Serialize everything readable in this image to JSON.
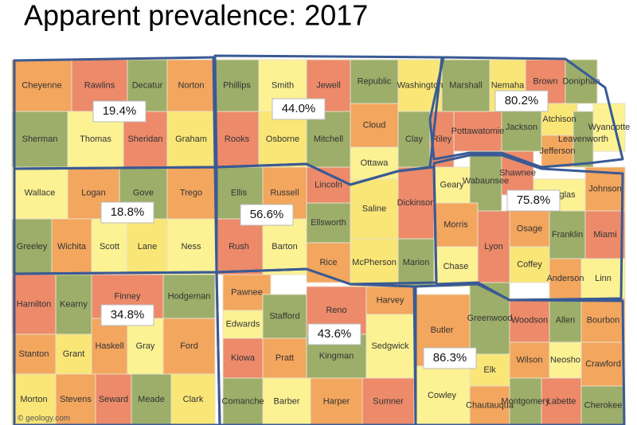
{
  "title": "Apparent prevalence:  2017",
  "counties": [
    "Cheyenne",
    "Rawlins",
    "Decatur",
    "Norton",
    "Phillips",
    "Smith",
    "Jewell",
    "Republic",
    "Washington",
    "Marshall",
    "Nemaha",
    "Brown",
    "Doniphan",
    "Sherman",
    "Thomas",
    "Sheridan",
    "Graham",
    "Rooks",
    "Osborne",
    "Mitchell",
    "Cloud",
    "Clay",
    "Ottawa",
    "Riley",
    "Pottawatomie",
    "Jackson",
    "Atchison",
    "Jefferson",
    "Leavenworth",
    "Wyandotte",
    "Wallace",
    "Logan",
    "Gove",
    "Trego",
    "Ellis",
    "Russell",
    "Lincoln",
    "Ellsworth",
    "Saline",
    "Dickinson",
    "Geary",
    "Wabaunsee",
    "Shawnee",
    "Douglas",
    "Johnson",
    "Greeley",
    "Wichita",
    "Scott",
    "Lane",
    "Ness",
    "Rush",
    "Barton",
    "Rice",
    "McPherson",
    "Marion",
    "Morris",
    "Chase",
    "Lyon",
    "Osage",
    "Franklin",
    "Miami",
    "Coffey",
    "Anderson",
    "Linn",
    "Hamilton",
    "Kearny",
    "Finney",
    "Hodgeman",
    "Pawnee",
    "Edwards",
    "Stafford",
    "Reno",
    "Harvey",
    "Butler",
    "Greenwood",
    "Woodson",
    "Allen",
    "Bourbon",
    "Stanton",
    "Grant",
    "Haskell",
    "Gray",
    "Ford",
    "Kiowa",
    "Pratt",
    "Kingman",
    "Sedgwick",
    "Elk",
    "Wilson",
    "Neosho",
    "Crawford",
    "Morton",
    "Stevens",
    "Seward",
    "Meade",
    "Clark",
    "Comanche",
    "Barber",
    "Harper",
    "Sumner",
    "Cowley",
    "Chautauqua",
    "Montgomery",
    "Labette",
    "Cherokee"
  ],
  "regions": [
    "19.4%",
    "44.0%",
    "80.2%",
    "18.8%",
    "56.6%",
    "75.8%",
    "34.8%",
    "43.6%",
    "86.3%"
  ],
  "credit": "© geology.com"
}
